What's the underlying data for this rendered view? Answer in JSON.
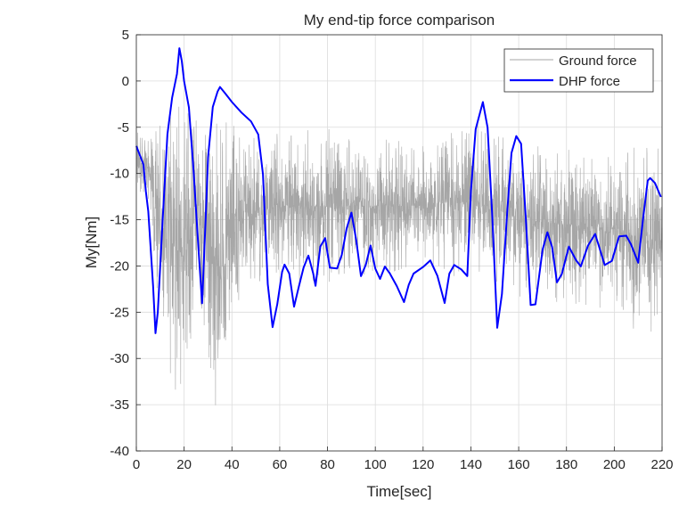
{
  "chart_data": {
    "type": "line",
    "title": "My end-tip force comparison",
    "xlabel": "Time[sec]",
    "ylabel": "My[Nm]",
    "xlim": [
      0,
      220
    ],
    "ylim": [
      -40,
      5
    ],
    "xticks": [
      0,
      20,
      40,
      60,
      80,
      100,
      120,
      140,
      160,
      180,
      200,
      220
    ],
    "yticks": [
      5,
      0,
      -5,
      -10,
      -15,
      -20,
      -25,
      -30,
      -35,
      -40
    ],
    "grid": true,
    "legend_placement": "top-right",
    "series": [
      {
        "name": "Ground force",
        "color": "#a6a6a6",
        "style": "dense high-frequency noise band",
        "band": {
          "t": [
            0,
            5,
            10,
            15,
            20,
            25,
            30,
            35,
            40,
            52,
            60,
            80,
            100,
            120,
            140,
            150,
            160,
            180,
            200,
            215,
            220
          ],
          "lower": [
            -12,
            -13,
            -28,
            -33,
            -36,
            -25,
            -30,
            -39,
            -25,
            -22,
            -22,
            -22,
            -21,
            -20,
            -22,
            -22,
            -24,
            -24,
            -25,
            -29,
            -26
          ],
          "upper": [
            -5,
            -6,
            -4,
            -2,
            -2,
            -4,
            -3,
            -3,
            -4,
            -6,
            -5,
            -5,
            -6,
            -7,
            -4,
            -5,
            -6,
            -7,
            -7,
            -7,
            -7
          ]
        }
      },
      {
        "name": "DHP force",
        "color": "#0000ff",
        "t": [
          0,
          3,
          4,
          5,
          7,
          8,
          9,
          11,
          13,
          15,
          17,
          18,
          19,
          20,
          22,
          24,
          26,
          27.5,
          29,
          30,
          32,
          34,
          35,
          37,
          40,
          44,
          48,
          51,
          53,
          55,
          57,
          59,
          61,
          62,
          64,
          66,
          68,
          70,
          72,
          74,
          75,
          77,
          79,
          81,
          84,
          86,
          88,
          90,
          92,
          94,
          96,
          98,
          100,
          102,
          104,
          106,
          109,
          112,
          114,
          116,
          120,
          123,
          126,
          129,
          131,
          133,
          136,
          138.5,
          140,
          142,
          145,
          147,
          149,
          151,
          153,
          155,
          157,
          159,
          161,
          163,
          165,
          167,
          170,
          172,
          174,
          176,
          178,
          181,
          184,
          186,
          189,
          192,
          194,
          196,
          199,
          202,
          205,
          207,
          210,
          212,
          214,
          215,
          217,
          219.5
        ],
        "y": [
          -7,
          -9,
          -12,
          -14,
          -22,
          -27.5,
          -25,
          -15,
          -6,
          -2,
          1,
          3.6,
          2,
          0,
          -3,
          -10,
          -18,
          -24,
          -15,
          -8,
          -3,
          -1,
          -0.5,
          -1.5,
          -2.5,
          -3.5,
          -4.5,
          -6,
          -10,
          -22,
          -26.5,
          -24,
          -20.5,
          -20,
          -21,
          -24.5,
          -22,
          -20,
          -19,
          -21,
          -22,
          -18,
          -17,
          -20,
          -20.5,
          -19,
          -16,
          -14,
          -17,
          -21,
          -20,
          -18,
          -20.5,
          -21.5,
          -20,
          -21,
          -22,
          -24,
          -22,
          -21,
          -20,
          -19.2,
          -21,
          -24,
          -21,
          -20,
          -20.5,
          -21,
          -12,
          -5,
          -2.5,
          -5,
          -15,
          -26.5,
          -23,
          -15,
          -8,
          -6,
          -7,
          -15,
          -24,
          -24,
          -18,
          -16.5,
          -18,
          -22,
          -21,
          -18,
          -19.5,
          -20,
          -18,
          -16.5,
          -18,
          -20,
          -19.5,
          -17,
          -16.5,
          -17.5,
          -19.5,
          -15,
          -11,
          -10.5,
          -11,
          -12.5
        ]
      }
    ]
  }
}
